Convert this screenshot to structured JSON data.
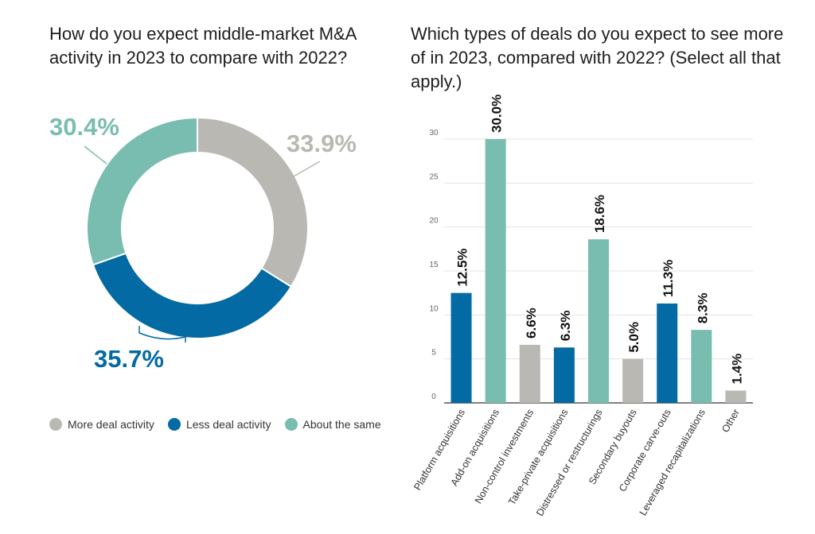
{
  "colors": {
    "gray": "#b9b8b3",
    "blue": "#036aa3",
    "teal": "#79bdb0"
  },
  "left_title": "How do you expect middle-market M&A activity in 2023 to compare with 2022?",
  "right_title": "Which types of deals do you expect to see more of in 2023, compared with 2022? (Select all that apply.)",
  "legend": [
    {
      "label": "More deal activity",
      "color": "#b9b8b3"
    },
    {
      "label": "Less deal activity",
      "color": "#036aa3"
    },
    {
      "label": "About the same",
      "color": "#79bdb0"
    }
  ],
  "chart_data": [
    {
      "type": "pie",
      "title": "How do you expect middle-market M&A activity in 2023 to compare with 2022?",
      "donut": true,
      "slices": [
        {
          "label": "More deal activity",
          "value": 33.9,
          "display": "33.9%",
          "color": "#b9b8b3"
        },
        {
          "label": "Less deal activity",
          "value": 35.7,
          "display": "35.7%",
          "color": "#036aa3"
        },
        {
          "label": "About the same",
          "value": 30.4,
          "display": "30.4%",
          "color": "#79bdb0"
        }
      ]
    },
    {
      "type": "bar",
      "title": "Which types of deals do you expect to see more of in 2023, compared with 2022? (Select all that apply.)",
      "categories": [
        "Platform acquisitions",
        "Add-on acquisitions",
        "Non-control investments",
        "Take-private acquisitions",
        "Distressed or restructurings",
        "Secondary buyouts",
        "Corporate carve-outs",
        "Leveraged recapitalizations",
        "Other"
      ],
      "values": [
        12.5,
        30.0,
        6.6,
        6.3,
        18.6,
        5.0,
        11.3,
        8.3,
        1.4
      ],
      "data_labels": [
        "12.5%",
        "30.0%",
        "6.6%",
        "6.3%",
        "18.6%",
        "5.0%",
        "11.3%",
        "8.3%",
        "1.4%"
      ],
      "colors": [
        "#036aa3",
        "#79bdb0",
        "#b9b8b3",
        "#036aa3",
        "#79bdb0",
        "#b9b8b3",
        "#036aa3",
        "#79bdb0",
        "#b9b8b3"
      ],
      "yticks": [
        0,
        5,
        10,
        15,
        20,
        25,
        30
      ],
      "ylim": [
        0,
        30
      ],
      "grid": true
    }
  ]
}
